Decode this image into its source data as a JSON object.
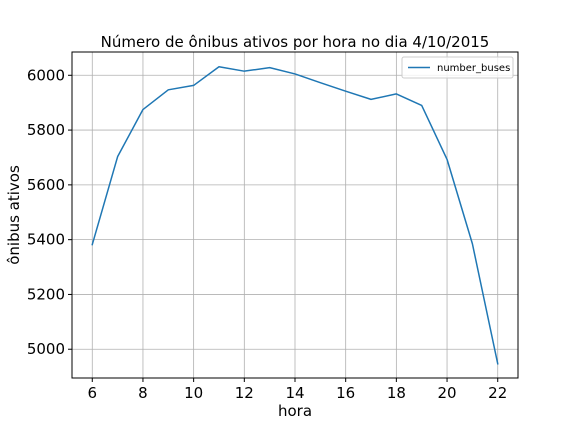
{
  "chart_data": {
    "type": "line",
    "title": "Número de ônibus ativos por hora no dia 4/10/2015",
    "xlabel": "hora",
    "ylabel": "ônibus ativos",
    "xlim": [
      5.2,
      22.8
    ],
    "ylim": [
      4895,
      6085
    ],
    "xticks": [
      6,
      8,
      10,
      12,
      14,
      16,
      18,
      20,
      22
    ],
    "yticks": [
      5000,
      5200,
      5400,
      5600,
      5800,
      6000
    ],
    "grid": true,
    "legend_position": "top-right",
    "colors": {
      "series": "#1f77b4",
      "grid": "#b0b0b0",
      "axis": "#000000"
    },
    "series": [
      {
        "name": "number_buses",
        "x": [
          6,
          7,
          8,
          9,
          10,
          11,
          12,
          13,
          14,
          15,
          16,
          17,
          18,
          19,
          20,
          21,
          22
        ],
        "values": [
          5382,
          5703,
          5875,
          5947,
          5963,
          6031,
          6015,
          6028,
          6005,
          5973,
          5942,
          5912,
          5932,
          5890,
          5693,
          5385,
          4947
        ]
      }
    ]
  }
}
